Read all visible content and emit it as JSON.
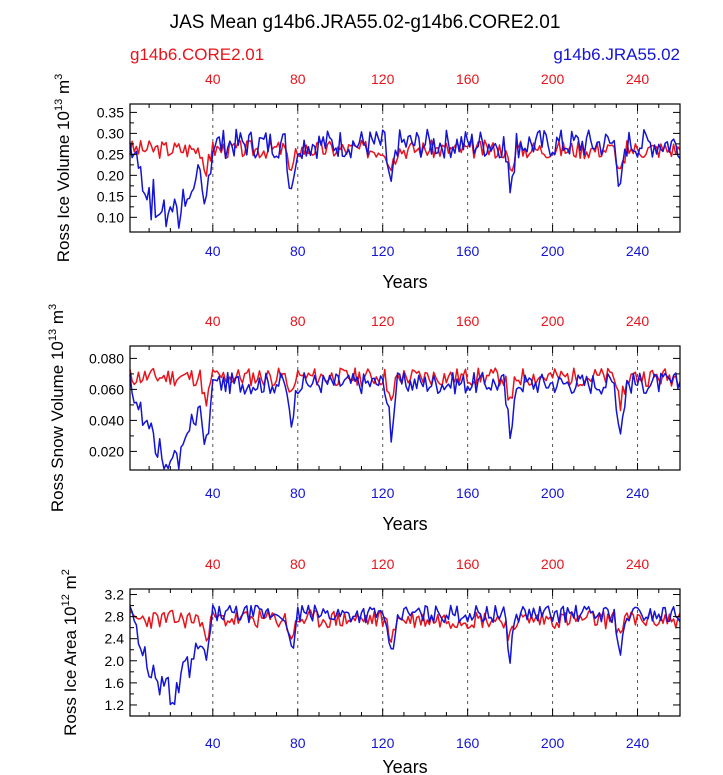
{
  "title": "JAS Mean g14b6.JRA55.02-g14b6.CORE2.01",
  "legend_left": "g14b6.CORE2.01",
  "legend_right": "g14b6.JRA55.02",
  "colors": {
    "core": "#e8141b",
    "jra": "#1414d4",
    "axis": "#000000",
    "grid": "#555555"
  },
  "chart_data": [
    {
      "type": "line",
      "id": "volume",
      "ylabel": "Ross Ice Volume 10",
      "ylabel_exp": "13",
      "ylabel_unit": " m",
      "ylabel_unit_exp": "3",
      "xlabel": "Years",
      "xlim": [
        1,
        260
      ],
      "ylim": [
        0.065,
        0.37
      ],
      "yticks": [
        0.1,
        0.15,
        0.2,
        0.25,
        0.3,
        0.35
      ],
      "ytick_labels": [
        "0.10",
        "0.15",
        "0.20",
        "0.25",
        "0.30",
        "0.35"
      ],
      "xticks": [
        40,
        80,
        120,
        160,
        200,
        240
      ],
      "xtick_labels": [
        "40",
        "80",
        "120",
        "160",
        "200",
        "240"
      ],
      "grid_x": true,
      "series": [
        {
          "name": "g14b6.CORE2.01",
          "color": "red",
          "base": 0.262,
          "amp": 0.022,
          "early_drop": 0.0,
          "dip": 0.05,
          "seed": 3
        },
        {
          "name": "g14b6.JRA55.02",
          "color": "blue",
          "base": 0.275,
          "amp": 0.035,
          "early_drop": 0.2,
          "dip": 0.13,
          "seed": 7
        }
      ]
    },
    {
      "type": "line",
      "id": "snow",
      "ylabel": "Ross Snow Volume 10",
      "ylabel_exp": "13",
      "ylabel_unit": " m",
      "ylabel_unit_exp": "3",
      "xlabel": "Years",
      "xlim": [
        1,
        260
      ],
      "ylim": [
        0.008,
        0.088
      ],
      "yticks": [
        0.02,
        0.04,
        0.06,
        0.08
      ],
      "ytick_labels": [
        "0.020",
        "0.040",
        "0.060",
        "0.080"
      ],
      "xticks": [
        40,
        80,
        120,
        160,
        200,
        240
      ],
      "xtick_labels": [
        "40",
        "80",
        "120",
        "160",
        "200",
        "240"
      ],
      "grid_x": true,
      "series": [
        {
          "name": "g14b6.CORE2.01",
          "color": "red",
          "base": 0.068,
          "amp": 0.006,
          "early_drop": 0.0,
          "dip": 0.018,
          "seed": 11
        },
        {
          "name": "g14b6.JRA55.02",
          "color": "blue",
          "base": 0.064,
          "amp": 0.007,
          "early_drop": 0.055,
          "dip": 0.035,
          "seed": 17
        }
      ]
    },
    {
      "type": "line",
      "id": "area",
      "ylabel": "Ross Ice Area 10",
      "ylabel_exp": "12",
      "ylabel_unit": " m",
      "ylabel_unit_exp": "2",
      "xlabel": "Years",
      "xlim": [
        1,
        260
      ],
      "ylim": [
        1.0,
        3.3
      ],
      "yticks": [
        1.2,
        1.6,
        2.0,
        2.4,
        2.8,
        3.2
      ],
      "ytick_labels": [
        "1.2",
        "1.6",
        "2.0",
        "2.4",
        "2.8",
        "3.2"
      ],
      "xticks": [
        40,
        80,
        120,
        160,
        200,
        240
      ],
      "xtick_labels": [
        "40",
        "80",
        "120",
        "160",
        "200",
        "240"
      ],
      "grid_x": true,
      "series": [
        {
          "name": "g14b6.CORE2.01",
          "color": "red",
          "base": 2.75,
          "amp": 0.17,
          "early_drop": 0.0,
          "dip": 0.35,
          "seed": 23
        },
        {
          "name": "g14b6.JRA55.02",
          "color": "blue",
          "base": 2.85,
          "amp": 0.16,
          "early_drop": 1.6,
          "dip": 0.85,
          "seed": 29
        }
      ]
    }
  ]
}
